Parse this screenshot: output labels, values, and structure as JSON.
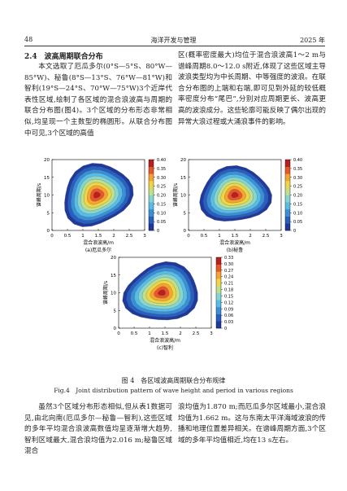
{
  "header": {
    "page": "48",
    "journal": "海洋开发与管理",
    "year": "2025 年"
  },
  "section_heading": "2.4　波高周期联合分布",
  "body_top": {
    "left": "本文选取了厄瓜多尔(0°S—5°S、80°W—85°W)、秘鲁(8°S—13°S、76°W—81°W)和智利(19°S—24°S、70°W—75°W)3个近岸代表性区域,绘制了各区域的混合浪波高与周期的联合分布图(图4)。3个区域的分布形态非常相似,均呈现一个主数型的椭圆形。从联合分布图中可见,3个区域的高值",
    "right": "区(概率密度最大)均位于混合浪波高1～2 m与谱峰周期8.0～12.0 s附近,体现了这些区域主导波浪类型均为中长周期、中等强度的波浪。在联合分布图的上端和右端,即可见到外延的较低概率密度分布“尾巴”,分别对应周期更长、波高更高的波浪成分。这些轮廓可能反映了偶尔出现的异常大浪过程或大涌浪事件的影响。"
  },
  "figure": {
    "panels": [
      {
        "label": "(a)厄瓜多尔",
        "xlabel": "混合浪波高/m",
        "ylabel": "谱峰周期/s",
        "xticks": [
          0,
          0.5,
          1,
          1.5,
          2,
          2.5,
          3
        ],
        "yticks": [
          0,
          5,
          10,
          15,
          20
        ],
        "colorbar_ticks": [
          0,
          {
            "value": 0.05,
            "label": "0.05"
          },
          {
            "value": 0.1,
            "label": "0.10"
          },
          {
            "value": 0.15,
            "label": "0.15"
          },
          {
            "value": 0.2,
            "label": "0.20"
          },
          {
            "value": 0.25,
            "label": "0.25"
          },
          {
            "value": 0.3,
            "label": "0.30"
          },
          {
            "value": 0.35,
            "label": "0.35"
          },
          {
            "value": 0.4,
            "label": "0.40"
          }
        ]
      },
      {
        "label": "(b)秘鲁",
        "xlabel": "混合浪波高/m",
        "ylabel": "谱峰周期/s",
        "xticks": [
          0,
          0.5,
          1,
          1.5,
          2,
          2.5,
          3
        ],
        "yticks": [
          0,
          5,
          10,
          15,
          20
        ],
        "colorbar_ticks": [
          0,
          {
            "value": 0.05,
            "label": "0.05"
          },
          {
            "value": 0.1,
            "label": "0.10"
          },
          {
            "value": 0.15,
            "label": "0.15"
          },
          {
            "value": 0.2,
            "label": "0.20"
          },
          {
            "value": 0.25,
            "label": "0.25"
          },
          {
            "value": 0.3,
            "label": "0.30"
          },
          {
            "value": 0.35,
            "label": "0.35"
          },
          {
            "value": 0.4,
            "label": "0.40"
          }
        ]
      },
      {
        "label": "(c)智利",
        "xlabel": "混合浪波高/m",
        "ylabel": "谱峰周期/s",
        "xticks": [
          0,
          0.5,
          1,
          1.5,
          2,
          2.5,
          3
        ],
        "yticks": [
          0,
          5,
          10,
          15,
          20
        ],
        "colorbar_ticks": [
          0,
          0.03,
          0.06,
          0.09,
          0.12,
          0.15,
          0.18,
          0.21,
          0.24,
          0.27,
          {
            "value": 0.3,
            "label": "0.30"
          },
          0.33
        ]
      }
    ],
    "caption_cn": "图 4　各区域波高周期联合分布规律",
    "caption_en": "Fig.4　Joint distribution pattern of wave height and period in various regions"
  },
  "body_bottom": {
    "left": "虽然3个区域分布形态相似,但从表1数据可见,由北向南(厄瓜多尔—秘鲁—智利),这些区域的多年平均混合浪波高数值均呈逐渐增大趋势,智利区域最大,混合浪均值为2.016 m;秘鲁区域混合",
    "right": "浪均值为1.870 m;而厄瓜多尔区域最小,混合浪均值为1.662 m。这与东南太平洋海域波浪的传播和地理位置差异相关。在谱峰周期方面,3个区域的多年平均值相近,均在13 s左右。"
  }
}
